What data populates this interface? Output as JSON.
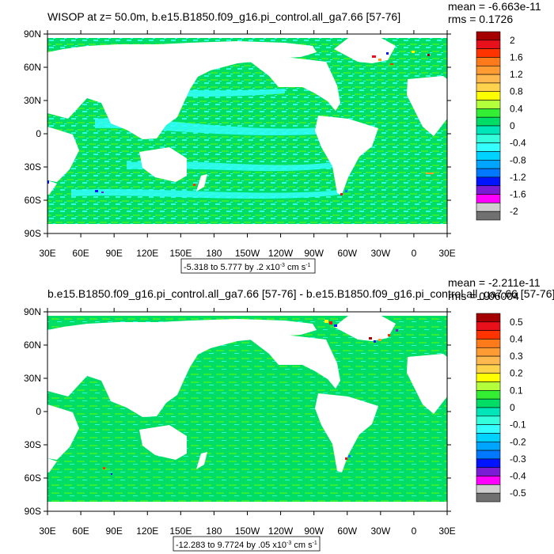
{
  "chart_data": [
    {
      "type": "heatmap",
      "title": "WISOP at z=  50.0m, b.e15.B1850.f09_g16.pi_control.all_ga7.66 [57-76]",
      "stats": {
        "mean": "mean = -6.663e-11",
        "rms": "rms = 0.1726"
      },
      "range_label": {
        "prefix": "-5.318 to 5.777 by .2 x10",
        "exp": "-3",
        "unit": " cm s",
        "unit_exp": "-1"
      },
      "x_ticks": [
        "30E",
        "60E",
        "90E",
        "120E",
        "150E",
        "180",
        "150W",
        "120W",
        "90W",
        "60W",
        "30W",
        "0",
        "30E"
      ],
      "y_ticks": [
        "90N",
        "60N",
        "30N",
        "0",
        "30S",
        "60S",
        "90S"
      ],
      "xlim": [
        30,
        390
      ],
      "ylim": [
        -90,
        90
      ],
      "colorbar": {
        "labels": [
          "2",
          "1.6",
          "1.2",
          "0.8",
          "0.4",
          "0",
          "-0.4",
          "-0.8",
          "-1.2",
          "-1.6",
          "-2"
        ],
        "colors": [
          "#a50000",
          "#e8101a",
          "#ff3300",
          "#ff7a1a",
          "#ff9b33",
          "#ffb84d",
          "#ffd24d",
          "#ffff00",
          "#b4ff3c",
          "#33ee33",
          "#00dd66",
          "#00e6b8",
          "#33ffdd",
          "#33ffff",
          "#00d2ff",
          "#00a5ff",
          "#0078ff",
          "#0014ff",
          "#7a1bd6",
          "#ff00ff",
          "#cfcfcf",
          "#707070"
        ]
      }
    },
    {
      "type": "heatmap",
      "title": "b.e15.B1850.f09_g16.pi_control.all_ga7.66 [57-76] - b.e15.B1850.f09_g16.pi_control.all_ga7.66 [57-76]",
      "stats": {
        "mean": "mean = -2.211e-11",
        "rms": "rms = 0.06004"
      },
      "range_label": {
        "prefix": "-12.283 to 9.7724 by .05 x10",
        "exp": "-3",
        "unit": " cm s",
        "unit_exp": "-1"
      },
      "x_ticks": [
        "30E",
        "60E",
        "90E",
        "120E",
        "150E",
        "180",
        "150W",
        "120W",
        "90W",
        "60W",
        "30W",
        "0",
        "30E"
      ],
      "y_ticks": [
        "90N",
        "60N",
        "30N",
        "0",
        "30S",
        "60S",
        "90S"
      ],
      "xlim": [
        30,
        390
      ],
      "ylim": [
        -90,
        90
      ],
      "colorbar": {
        "labels": [
          "0.5",
          "0.4",
          "0.3",
          "0.2",
          "0.1",
          "0",
          "-0.1",
          "-0.2",
          "-0.3",
          "-0.4",
          "-0.5"
        ],
        "colors": [
          "#a50000",
          "#e8101a",
          "#ff3300",
          "#ff7a1a",
          "#ff9b33",
          "#ffb84d",
          "#ffd24d",
          "#ffff00",
          "#b4ff3c",
          "#33ee33",
          "#00dd66",
          "#00e6b8",
          "#33ffdd",
          "#33ffff",
          "#00d2ff",
          "#00a5ff",
          "#0078ff",
          "#0014ff",
          "#7a1bd6",
          "#ff00ff",
          "#cfcfcf",
          "#707070"
        ]
      }
    }
  ]
}
